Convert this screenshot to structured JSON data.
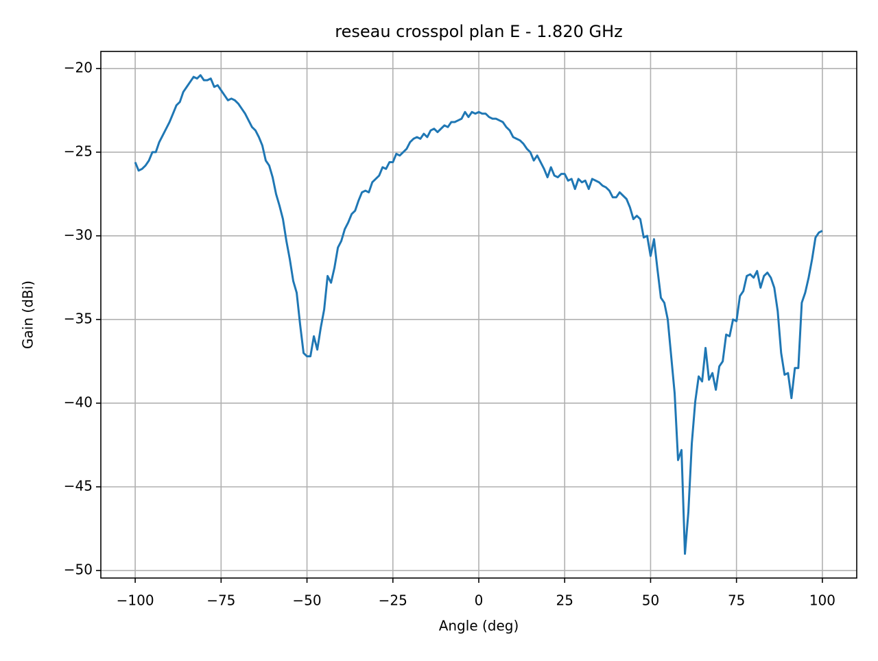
{
  "chart_data": {
    "type": "line",
    "title": "reseau crosspol plan E - 1.820 GHz",
    "x_label": "Angle (deg)",
    "y_label": "Gain (dBi)",
    "x": [
      -100,
      -99,
      -98,
      -97,
      -96,
      -95,
      -94,
      -93,
      -92,
      -91,
      -90,
      -89,
      -88,
      -87,
      -86,
      -85,
      -84,
      -83,
      -82,
      -81,
      -80,
      -79,
      -78,
      -77,
      -76,
      -75,
      -74,
      -73,
      -72,
      -71,
      -70,
      -69,
      -68,
      -67,
      -66,
      -65,
      -64,
      -63,
      -62,
      -61,
      -60,
      -59,
      -58,
      -57,
      -56,
      -55,
      -54,
      -53,
      -52,
      -51,
      -50,
      -49,
      -48,
      -47,
      -46,
      -45,
      -44,
      -43,
      -42,
      -41,
      -40,
      -39,
      -38,
      -37,
      -36,
      -35,
      -34,
      -33,
      -32,
      -31,
      -30,
      -29,
      -28,
      -27,
      -26,
      -25,
      -24,
      -23,
      -22,
      -21,
      -20,
      -19,
      -18,
      -17,
      -16,
      -15,
      -14,
      -13,
      -12,
      -11,
      -10,
      -9,
      -8,
      -7,
      -6,
      -5,
      -4,
      -3,
      -2,
      -1,
      0,
      1,
      2,
      3,
      4,
      5,
      6,
      7,
      8,
      9,
      10,
      11,
      12,
      13,
      14,
      15,
      16,
      17,
      18,
      19,
      20,
      21,
      22,
      23,
      24,
      25,
      26,
      27,
      28,
      29,
      30,
      31,
      32,
      33,
      34,
      35,
      36,
      37,
      38,
      39,
      40,
      41,
      42,
      43,
      44,
      45,
      46,
      47,
      48,
      49,
      50,
      51,
      52,
      53,
      54,
      55,
      56,
      57,
      58,
      59,
      60,
      61,
      62,
      63,
      64,
      65,
      66,
      67,
      68,
      69,
      70,
      71,
      72,
      73,
      74,
      75,
      76,
      77,
      78,
      79,
      80,
      81,
      82,
      83,
      84,
      85,
      86,
      87,
      88,
      89,
      90,
      91,
      92,
      93,
      94,
      95,
      96,
      97,
      98,
      99,
      100
    ],
    "series": [
      {
        "color": "#1f77b4",
        "values": [
          -25.6,
          -26.1,
          -26.0,
          -25.8,
          -25.5,
          -25.0,
          -25.0,
          -24.4,
          -24.0,
          -23.6,
          -23.2,
          -22.7,
          -22.2,
          -22.0,
          -21.4,
          -21.1,
          -20.8,
          -20.5,
          -20.6,
          -20.4,
          -20.7,
          -20.7,
          -20.6,
          -21.1,
          -21.0,
          -21.3,
          -21.6,
          -21.9,
          -21.8,
          -21.9,
          -22.1,
          -22.4,
          -22.7,
          -23.1,
          -23.5,
          -23.7,
          -24.1,
          -24.6,
          -25.5,
          -25.8,
          -26.5,
          -27.5,
          -28.2,
          -29.0,
          -30.3,
          -31.4,
          -32.7,
          -33.4,
          -35.3,
          -37.0,
          -37.2,
          -37.2,
          -36.0,
          -36.8,
          -35.5,
          -34.4,
          -32.4,
          -32.8,
          -31.9,
          -30.7,
          -30.3,
          -29.6,
          -29.2,
          -28.7,
          -28.5,
          -27.9,
          -27.4,
          -27.3,
          -27.4,
          -26.8,
          -26.6,
          -26.4,
          -25.9,
          -26.0,
          -25.6,
          -25.6,
          -25.1,
          -25.2,
          -25.0,
          -24.8,
          -24.4,
          -24.2,
          -24.1,
          -24.2,
          -23.9,
          -24.1,
          -23.7,
          -23.6,
          -23.8,
          -23.6,
          -23.4,
          -23.5,
          -23.2,
          -23.2,
          -23.1,
          -23.0,
          -22.6,
          -22.9,
          -22.6,
          -22.7,
          -22.6,
          -22.7,
          -22.7,
          -22.9,
          -23.0,
          -23.0,
          -23.1,
          -23.2,
          -23.5,
          -23.7,
          -24.1,
          -24.2,
          -24.3,
          -24.5,
          -24.8,
          -25.0,
          -25.5,
          -25.2,
          -25.6,
          -26.0,
          -26.5,
          -25.9,
          -26.4,
          -26.5,
          -26.3,
          -26.3,
          -26.7,
          -26.6,
          -27.2,
          -26.6,
          -26.8,
          -26.7,
          -27.2,
          -26.6,
          -26.7,
          -26.8,
          -27.0,
          -27.1,
          -27.3,
          -27.7,
          -27.7,
          -27.4,
          -27.6,
          -27.8,
          -28.3,
          -29.0,
          -28.8,
          -29.0,
          -30.1,
          -30.0,
          -31.2,
          -30.2,
          -32.0,
          -33.7,
          -34.0,
          -35.0,
          -37.2,
          -39.4,
          -43.4,
          -42.8,
          -49.0,
          -46.5,
          -42.4,
          -39.9,
          -38.4,
          -38.7,
          -36.7,
          -38.6,
          -38.2,
          -39.2,
          -37.8,
          -37.5,
          -35.9,
          -36.0,
          -35.0,
          -35.1,
          -33.6,
          -33.3,
          -32.4,
          -32.3,
          -32.5,
          -32.1,
          -33.1,
          -32.4,
          -32.2,
          -32.5,
          -33.1,
          -34.5,
          -37.0,
          -38.3,
          -38.2,
          -39.7,
          -37.9,
          -37.9,
          -34.0,
          -33.4,
          -32.5,
          -31.4,
          -30.1,
          -29.8,
          -29.7
        ]
      }
    ],
    "xlim": [
      -110,
      110
    ],
    "ylim": [
      -50.45,
      -18.98
    ],
    "xticks": [
      {
        "value": -100,
        "label": "−100"
      },
      {
        "value": -75,
        "label": "−75"
      },
      {
        "value": -50,
        "label": "−50"
      },
      {
        "value": -25,
        "label": "−25"
      },
      0,
      25,
      50,
      75,
      100
    ],
    "yticks": [
      {
        "value": -50,
        "label": "−50"
      },
      {
        "value": -45,
        "label": "−45"
      },
      {
        "value": -40,
        "label": "−40"
      },
      {
        "value": -35,
        "label": "−35"
      },
      {
        "value": -30,
        "label": "−30"
      },
      {
        "value": -25,
        "label": "−25"
      },
      {
        "value": -20,
        "label": "−20"
      }
    ],
    "grid": true
  }
}
